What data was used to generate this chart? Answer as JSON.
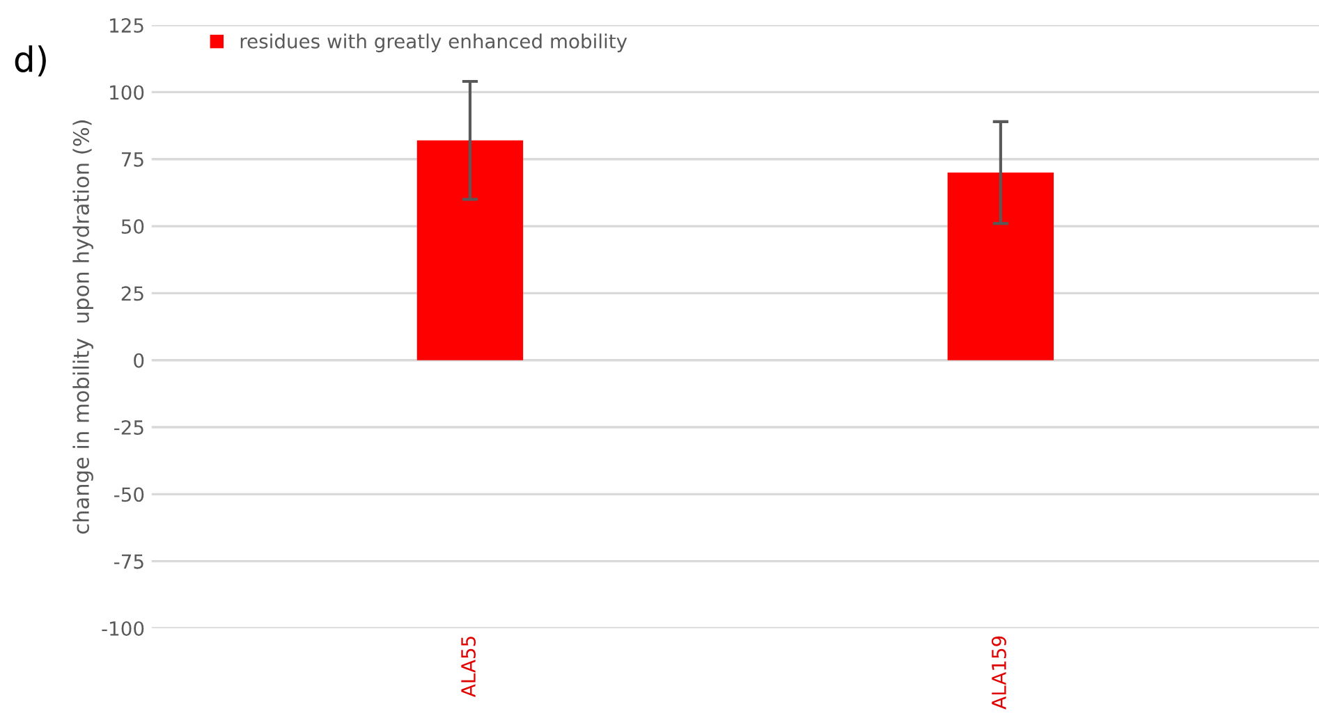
{
  "chart_data": {
    "type": "bar",
    "ylabel": "change in mobility  upon hydration (%)",
    "annotations": [
      "d)"
    ],
    "categories": [
      "ALA55",
      "ALA159"
    ],
    "series": [
      {
        "name": "residues with greatly enhanced mobility",
        "color": "#ff0000",
        "values": [
          82,
          70
        ],
        "errors": [
          22,
          19
        ]
      }
    ],
    "ylim": [
      -100,
      125
    ],
    "yticks": [
      -100,
      -75,
      -50,
      -25,
      0,
      25,
      50,
      75,
      100,
      125
    ],
    "grid": "y",
    "legend": "top left"
  }
}
